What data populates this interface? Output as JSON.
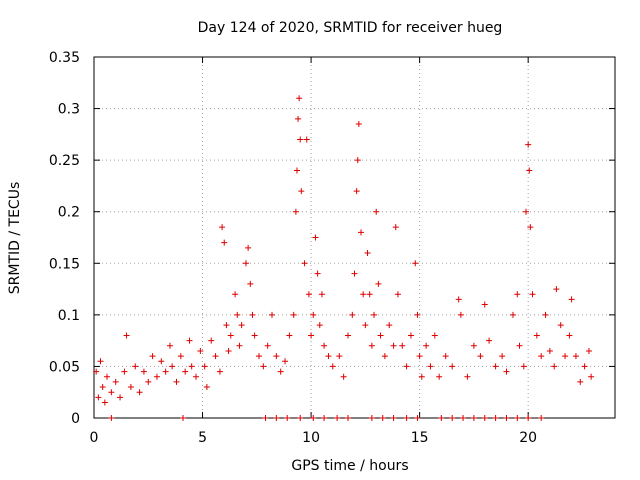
{
  "chart_data": {
    "type": "scatter",
    "title": "Day 124 of 2020, SRMTID for receiver hueg",
    "xlabel": "GPS time / hours",
    "ylabel": "SRMTID / TECUs",
    "xlim": [
      0,
      24
    ],
    "ylim": [
      0,
      0.35
    ],
    "grid": true,
    "marker": "+",
    "xticks": [
      0,
      5,
      10,
      15,
      20
    ],
    "xtick_labels": [
      "0",
      "5",
      "10",
      "15",
      "20"
    ],
    "yticks": [
      0,
      0.05,
      0.1,
      0.15,
      0.2,
      0.25,
      0.3,
      0.35
    ],
    "ytick_labels": [
      "0",
      "0.05",
      "0.1",
      "0.15",
      "0.2",
      "0.25",
      "0.3",
      "0.35"
    ],
    "series": [
      {
        "name": "SRMTID",
        "color": "#dd0000",
        "points": [
          [
            0.1,
            0.045
          ],
          [
            0.2,
            0.02
          ],
          [
            0.3,
            0.055
          ],
          [
            0.4,
            0.03
          ],
          [
            0.5,
            0.015
          ],
          [
            0.6,
            0.04
          ],
          [
            0.8,
            0.025
          ],
          [
            1.0,
            0.035
          ],
          [
            1.2,
            0.02
          ],
          [
            1.4,
            0.045
          ],
          [
            1.5,
            0.08
          ],
          [
            1.7,
            0.03
          ],
          [
            1.9,
            0.05
          ],
          [
            2.1,
            0.025
          ],
          [
            2.3,
            0.045
          ],
          [
            2.5,
            0.035
          ],
          [
            2.7,
            0.06
          ],
          [
            2.9,
            0.04
          ],
          [
            3.1,
            0.055
          ],
          [
            3.3,
            0.045
          ],
          [
            3.5,
            0.07
          ],
          [
            3.6,
            0.05
          ],
          [
            3.8,
            0.035
          ],
          [
            4.0,
            0.06
          ],
          [
            4.2,
            0.045
          ],
          [
            4.4,
            0.075
          ],
          [
            4.5,
            0.05
          ],
          [
            4.7,
            0.04
          ],
          [
            4.9,
            0.065
          ],
          [
            5.1,
            0.05
          ],
          [
            5.2,
            0.03
          ],
          [
            5.4,
            0.075
          ],
          [
            5.6,
            0.06
          ],
          [
            5.8,
            0.045
          ],
          [
            5.9,
            0.185
          ],
          [
            6.0,
            0.17
          ],
          [
            6.1,
            0.09
          ],
          [
            6.2,
            0.065
          ],
          [
            6.3,
            0.08
          ],
          [
            6.5,
            0.12
          ],
          [
            6.6,
            0.1
          ],
          [
            6.7,
            0.07
          ],
          [
            6.8,
            0.09
          ],
          [
            7.0,
            0.15
          ],
          [
            7.1,
            0.165
          ],
          [
            7.2,
            0.13
          ],
          [
            7.3,
            0.1
          ],
          [
            7.4,
            0.08
          ],
          [
            7.6,
            0.06
          ],
          [
            7.8,
            0.05
          ],
          [
            8.0,
            0.07
          ],
          [
            8.2,
            0.1
          ],
          [
            8.4,
            0.06
          ],
          [
            8.6,
            0.045
          ],
          [
            8.8,
            0.055
          ],
          [
            9.0,
            0.08
          ],
          [
            9.2,
            0.1
          ],
          [
            9.3,
            0.2
          ],
          [
            9.35,
            0.24
          ],
          [
            9.4,
            0.29
          ],
          [
            9.45,
            0.31
          ],
          [
            9.5,
            0.27
          ],
          [
            9.55,
            0.22
          ],
          [
            9.7,
            0.15
          ],
          [
            9.8,
            0.27
          ],
          [
            9.9,
            0.12
          ],
          [
            10.0,
            0.08
          ],
          [
            10.1,
            0.1
          ],
          [
            10.2,
            0.175
          ],
          [
            10.3,
            0.14
          ],
          [
            10.4,
            0.09
          ],
          [
            10.5,
            0.12
          ],
          [
            10.6,
            0.07
          ],
          [
            10.8,
            0.06
          ],
          [
            11.0,
            0.05
          ],
          [
            11.3,
            0.06
          ],
          [
            11.5,
            0.04
          ],
          [
            11.7,
            0.08
          ],
          [
            11.9,
            0.1
          ],
          [
            12.0,
            0.14
          ],
          [
            12.1,
            0.22
          ],
          [
            12.15,
            0.25
          ],
          [
            12.2,
            0.285
          ],
          [
            12.3,
            0.18
          ],
          [
            12.4,
            0.12
          ],
          [
            12.5,
            0.09
          ],
          [
            12.6,
            0.16
          ],
          [
            12.7,
            0.12
          ],
          [
            12.8,
            0.07
          ],
          [
            12.9,
            0.1
          ],
          [
            13.0,
            0.2
          ],
          [
            13.1,
            0.13
          ],
          [
            13.2,
            0.08
          ],
          [
            13.4,
            0.06
          ],
          [
            13.6,
            0.09
          ],
          [
            13.8,
            0.07
          ],
          [
            13.9,
            0.185
          ],
          [
            14.0,
            0.12
          ],
          [
            14.2,
            0.07
          ],
          [
            14.4,
            0.05
          ],
          [
            14.6,
            0.08
          ],
          [
            14.8,
            0.15
          ],
          [
            14.9,
            0.1
          ],
          [
            15.0,
            0.06
          ],
          [
            15.1,
            0.04
          ],
          [
            15.3,
            0.07
          ],
          [
            15.5,
            0.05
          ],
          [
            15.7,
            0.08
          ],
          [
            15.9,
            0.04
          ],
          [
            16.2,
            0.06
          ],
          [
            16.5,
            0.05
          ],
          [
            16.8,
            0.115
          ],
          [
            16.9,
            0.1
          ],
          [
            17.2,
            0.04
          ],
          [
            17.5,
            0.07
          ],
          [
            17.8,
            0.06
          ],
          [
            18.0,
            0.11
          ],
          [
            18.2,
            0.075
          ],
          [
            18.5,
            0.05
          ],
          [
            18.8,
            0.06
          ],
          [
            19.0,
            0.045
          ],
          [
            19.3,
            0.1
          ],
          [
            19.5,
            0.12
          ],
          [
            19.6,
            0.07
          ],
          [
            19.8,
            0.05
          ],
          [
            19.9,
            0.2
          ],
          [
            20.0,
            0.265
          ],
          [
            20.05,
            0.24
          ],
          [
            20.1,
            0.185
          ],
          [
            20.2,
            0.12
          ],
          [
            20.4,
            0.08
          ],
          [
            20.6,
            0.06
          ],
          [
            20.8,
            0.1
          ],
          [
            21.0,
            0.065
          ],
          [
            21.2,
            0.05
          ],
          [
            21.3,
            0.125
          ],
          [
            21.5,
            0.09
          ],
          [
            21.7,
            0.06
          ],
          [
            21.9,
            0.08
          ],
          [
            22.0,
            0.115
          ],
          [
            22.2,
            0.06
          ],
          [
            22.4,
            0.035
          ],
          [
            22.6,
            0.05
          ],
          [
            22.8,
            0.065
          ],
          [
            22.9,
            0.04
          ],
          [
            0.8,
            0.0
          ],
          [
            4.1,
            0.0
          ],
          [
            7.9,
            0.0
          ],
          [
            8.4,
            0.0
          ],
          [
            8.9,
            0.0
          ],
          [
            9.5,
            0.0
          ],
          [
            10.1,
            0.0
          ],
          [
            10.6,
            0.0
          ],
          [
            11.2,
            0.0
          ],
          [
            11.7,
            0.0
          ],
          [
            12.8,
            0.0
          ],
          [
            13.3,
            0.0
          ],
          [
            13.8,
            0.0
          ],
          [
            14.4,
            0.0
          ],
          [
            14.9,
            0.0
          ],
          [
            16.0,
            0.0
          ],
          [
            16.5,
            0.0
          ],
          [
            17.0,
            0.0
          ],
          [
            17.5,
            0.0
          ],
          [
            18.0,
            0.0
          ],
          [
            18.5,
            0.0
          ],
          [
            19.0,
            0.0
          ],
          [
            19.5,
            0.0
          ],
          [
            20.0,
            0.0
          ],
          [
            20.6,
            0.0
          ]
        ]
      }
    ]
  }
}
